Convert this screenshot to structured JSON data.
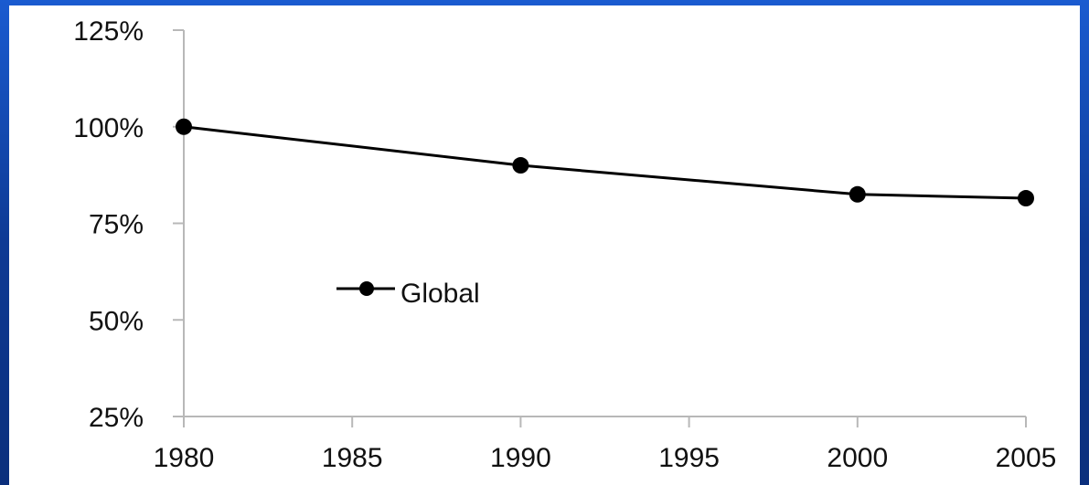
{
  "chart_data": {
    "type": "line",
    "x": [
      1980,
      1990,
      2000,
      2005
    ],
    "series": [
      {
        "name": "Global",
        "values": [
          100,
          90,
          82.5,
          81.5
        ]
      }
    ],
    "ylim": [
      25,
      125
    ],
    "xlim": [
      1980,
      2005
    ],
    "yticks": [
      "125%",
      "100%",
      "75%",
      "50%",
      "25%"
    ],
    "xticks": [
      "1980",
      "1985",
      "1990",
      "1995",
      "2000",
      "2005"
    ],
    "legend": {
      "position": "left-middle",
      "label": "Global"
    },
    "grid": false,
    "colors": {
      "line": "#000000",
      "axis": "#b8b8b8",
      "frame": "#1546a8"
    }
  }
}
